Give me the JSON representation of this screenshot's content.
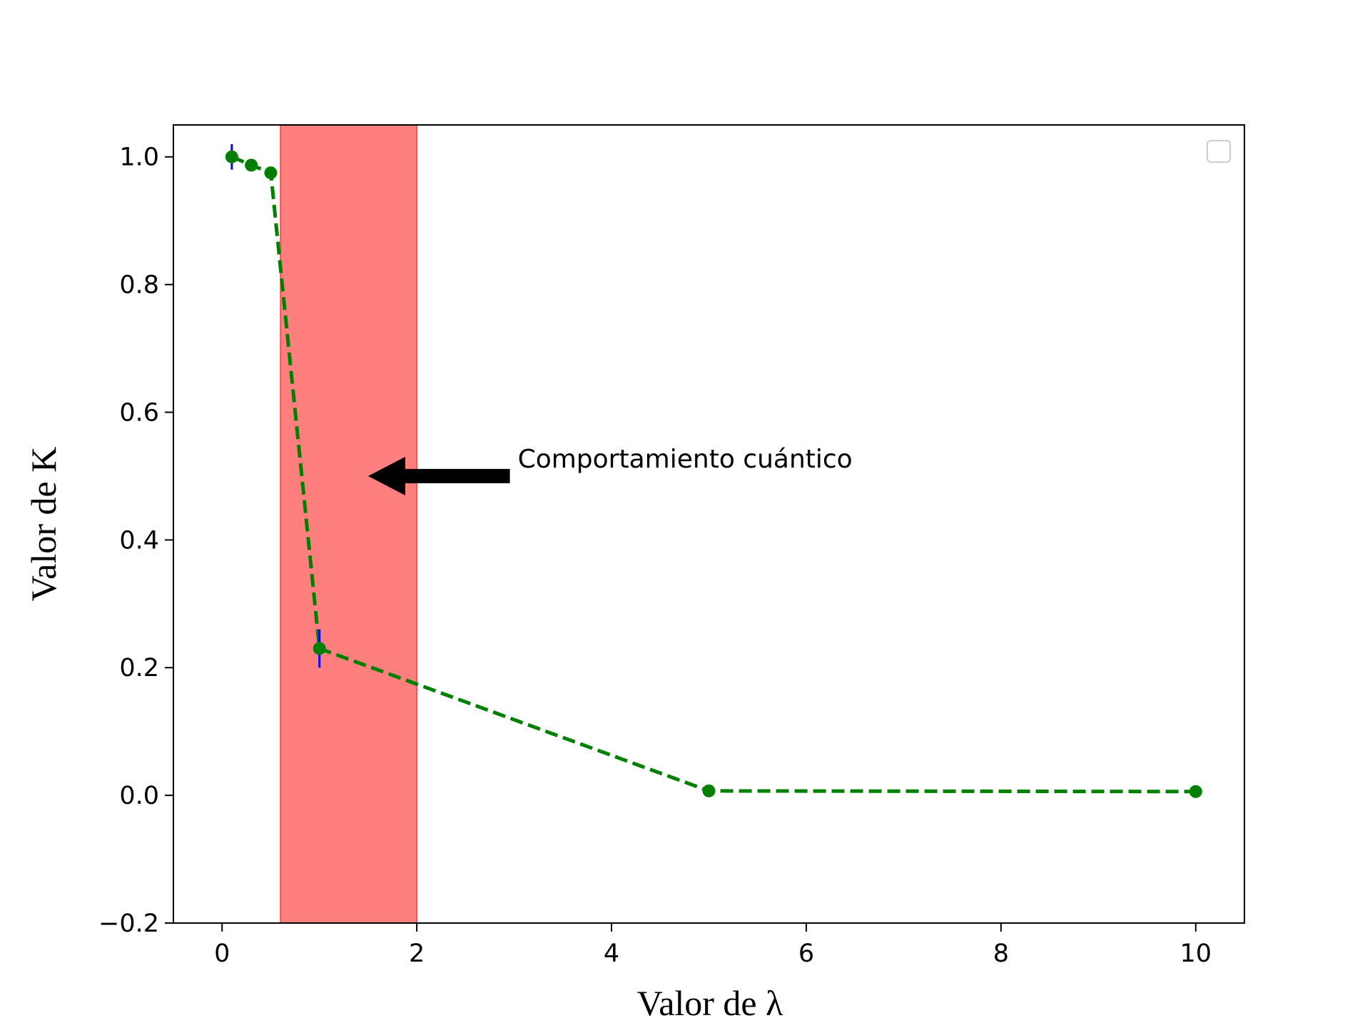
{
  "chart_data": {
    "type": "line",
    "title": "",
    "xlabel": "Valor de λ",
    "ylabel": "Valor de K",
    "xlim": [
      -0.5,
      10.5
    ],
    "ylim": [
      -0.2,
      1.05
    ],
    "xticks": [
      0,
      2,
      4,
      6,
      8,
      10
    ],
    "xtick_labels": [
      "0",
      "2",
      "4",
      "6",
      "8",
      "10"
    ],
    "yticks": [
      -0.2,
      0.0,
      0.2,
      0.4,
      0.6,
      0.8,
      1.0
    ],
    "ytick_labels": [
      "−0.2",
      "0.0",
      "0.2",
      "0.4",
      "0.6",
      "0.8",
      "1.0"
    ],
    "grid": false,
    "legend": "top-right (empty)",
    "series": [
      {
        "color": "#008000",
        "linestyle": "dashed",
        "marker": "circle",
        "x": [
          0.1,
          0.3,
          0.5,
          1.0,
          5.0,
          10.0
        ],
        "y": [
          1.0,
          0.987,
          0.975,
          0.23,
          0.007,
          0.006
        ],
        "yerr": [
          0.02,
          0.004,
          0.004,
          0.03,
          0.002,
          0.002
        ],
        "errorbar_color": "#0000ff"
      }
    ],
    "shaded_region": {
      "x_start": 0.6,
      "x_end": 2.0,
      "color": "#ff0000",
      "alpha": 0.5
    },
    "annotation": {
      "text": "Comportamiento cuántico",
      "text_x": 3.0,
      "text_y": 0.5,
      "arrow_to_x": 1.5,
      "arrow_to_y": 0.5,
      "arrow_color": "#000000"
    }
  }
}
